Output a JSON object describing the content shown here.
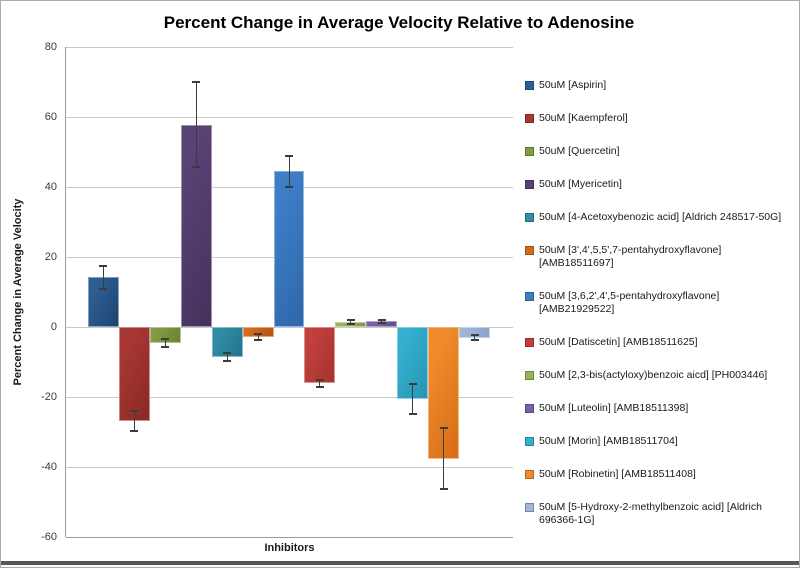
{
  "chart_data": {
    "type": "bar",
    "title": "Percent Change in Average Velocity Relative to Adenosine",
    "xlabel": "Inhibitors",
    "ylabel": "Percent Change in Average Velocity",
    "ylim": [
      -60,
      80
    ],
    "y_ticks": [
      80,
      60,
      40,
      20,
      0,
      -20,
      -40,
      -60
    ],
    "grid": true,
    "legend_position": "right",
    "error_bars": true,
    "categories": [
      "Inhibitors"
    ],
    "series": [
      {
        "label": "50uM [Aspirin]",
        "value": 14.2,
        "error": 3.2,
        "color": "#2e5f94",
        "color_dark": "#1e4571"
      },
      {
        "label": "50uM [Kaempferol]",
        "value": -26.9,
        "error": 2.9,
        "color": "#a83733",
        "color_dark": "#8a2a27"
      },
      {
        "label": "50uM [Quercetin]",
        "value": -4.6,
        "error": 1.2,
        "color": "#829c42",
        "color_dark": "#6b8335"
      },
      {
        "label": "50uM [Myericetin]",
        "value": 57.8,
        "error": 12.2,
        "color": "#5a4176",
        "color_dark": "#46325e"
      },
      {
        "label": "50uM [4-Acetoxybenozic acid] [Aldrich 248517-50G]",
        "value": -8.6,
        "error": 1.1,
        "color": "#2f8ea6",
        "color_dark": "#25768b"
      },
      {
        "label": "50uM [3',4',5,5',7-pentahydroxyflavone] [AMB18511697]",
        "value": -2.9,
        "error": 0.8,
        "color": "#d56b1c",
        "color_dark": "#b35511"
      },
      {
        "label": "50uM [3,6,2',4',5-pentahydroxyflavone] [AMB21929522]",
        "value": 44.5,
        "error": 4.5,
        "color": "#3d7ec7",
        "color_dark": "#2f68aa"
      },
      {
        "label": "50uM [Datiscetin] [AMB18511625]",
        "value": -16.0,
        "error": 1.0,
        "color": "#c2403c",
        "color_dark": "#a83430"
      },
      {
        "label": "50uM [2,3-bis(actyloxy)benzoic aicd] [PH003446]",
        "value": 1.5,
        "error": 0.5,
        "color": "#97b355",
        "color_dark": "#819b46"
      },
      {
        "label": "50uM [Luteolin] [AMB18511398]",
        "value": 1.6,
        "error": 0.5,
        "color": "#7760a5",
        "color_dark": "#624f8c"
      },
      {
        "label": "50uM [Morin] [AMB18511704]",
        "value": -20.6,
        "error": 4.3,
        "color": "#35afd0",
        "color_dark": "#2897b5"
      },
      {
        "label": "50uM [Robinetin] [AMB18511408]",
        "value": -37.6,
        "error": 8.7,
        "color": "#ef8b2d",
        "color_dark": "#d96f15"
      },
      {
        "label": "50uM [5-Hydroxy-2-methylbenzoic acid] [Aldrich 696366-1G]",
        "value": -3.0,
        "error": 0.8,
        "color": "#9fb5d9",
        "color_dark": "#8ba3c9"
      }
    ]
  }
}
